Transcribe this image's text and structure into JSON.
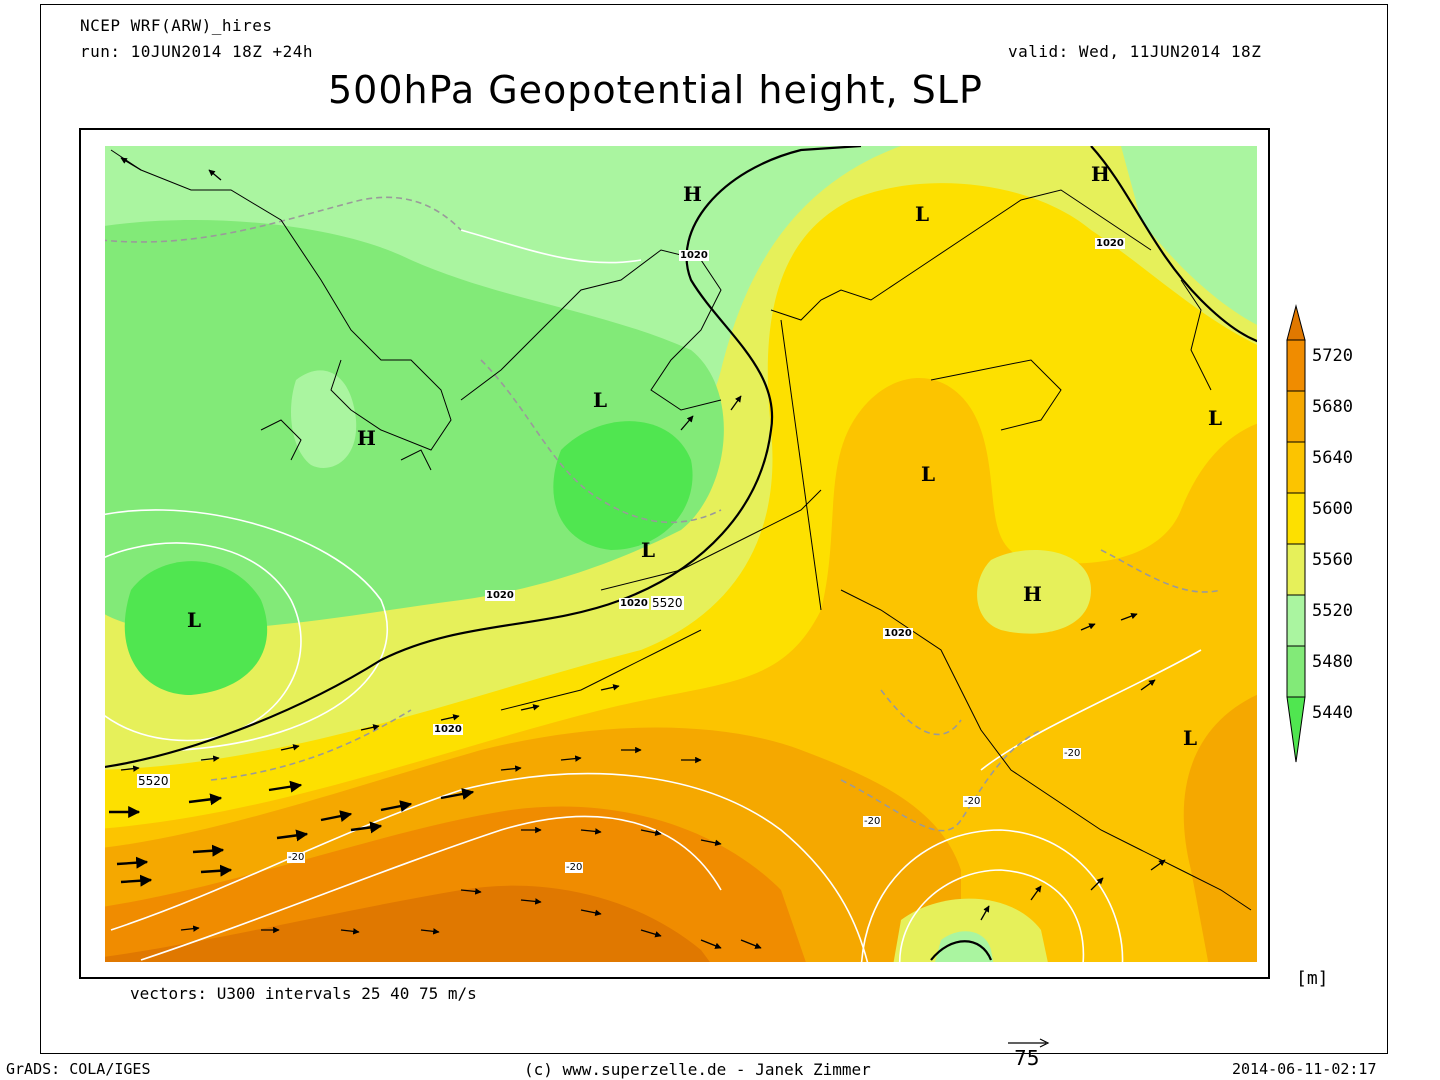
{
  "header": {
    "model": "NCEP WRF(ARW)_hires",
    "run": "run: 10JUN2014 18Z +24h",
    "valid": "valid: Wed, 11JUN2014 18Z",
    "title": "500hPa Geopotential height, SLP"
  },
  "map": {
    "pressure_centers": [
      {
        "letter": "H"
      },
      {
        "letter": "H"
      },
      {
        "letter": "H"
      },
      {
        "letter": "H"
      },
      {
        "letter": "L"
      },
      {
        "letter": "L"
      },
      {
        "letter": "L"
      },
      {
        "letter": "L"
      },
      {
        "letter": "L"
      },
      {
        "letter": "L"
      },
      {
        "letter": "L"
      }
    ],
    "contour_labels": [
      "1020",
      "1020",
      "1020",
      "1020",
      "1020",
      "1020",
      "5520",
      "5520",
      "-20",
      "-20",
      "-20",
      "-20",
      "-20"
    ]
  },
  "colorbar": {
    "unit": "[m]",
    "levels": [
      "5720",
      "5680",
      "5640",
      "5600",
      "5560",
      "5520",
      "5480",
      "5440"
    ],
    "colors": [
      "#e07800",
      "#f08c00",
      "#f5a800",
      "#fcc400",
      "#fde000",
      "#e6f05a",
      "#aaf5a0",
      "#82ea78",
      "#50e650"
    ]
  },
  "footer": {
    "vectors": "vectors: U300 intervals 25 40 75 m/s",
    "grads": "GrADS: COLA/IGES",
    "credit": "(c) www.superzelle.de - Janek Zimmer",
    "ref_vector": "75",
    "timestamp": "2014-06-11-02:17"
  }
}
